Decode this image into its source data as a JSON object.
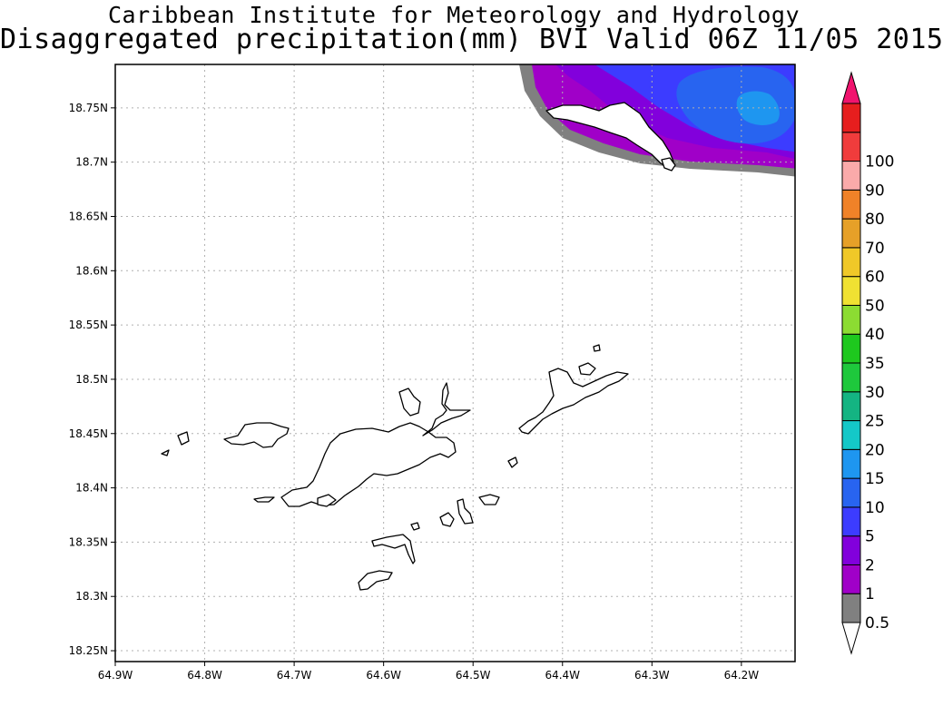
{
  "header": {
    "title": "Caribbean Institute for Meteorology and Hydrology",
    "subtitle": "Disaggregated precipitation(mm) BVI Valid 06Z 11/05 2015"
  },
  "map": {
    "lon_range": [
      -64.9,
      -64.14
    ],
    "lat_range": [
      18.24,
      18.79
    ],
    "lon_ticks": [
      {
        "value": -64.9,
        "label": "64.9W"
      },
      {
        "value": -64.8,
        "label": "64.8W"
      },
      {
        "value": -64.7,
        "label": "64.7W"
      },
      {
        "value": -64.6,
        "label": "64.6W"
      },
      {
        "value": -64.5,
        "label": "64.5W"
      },
      {
        "value": -64.4,
        "label": "64.4W"
      },
      {
        "value": -64.3,
        "label": "64.3W"
      },
      {
        "value": -64.2,
        "label": "64.2W"
      }
    ],
    "lat_ticks": [
      {
        "value": 18.25,
        "label": "18.25N"
      },
      {
        "value": 18.3,
        "label": "18.3N"
      },
      {
        "value": 18.35,
        "label": "18.35N"
      },
      {
        "value": 18.4,
        "label": "18.4N"
      },
      {
        "value": 18.45,
        "label": "18.45N"
      },
      {
        "value": 18.5,
        "label": "18.5N"
      },
      {
        "value": 18.55,
        "label": "18.55N"
      },
      {
        "value": 18.6,
        "label": "18.6N"
      },
      {
        "value": 18.65,
        "label": "18.65N"
      },
      {
        "value": 18.7,
        "label": "18.7N"
      },
      {
        "value": 18.75,
        "label": "18.75N"
      }
    ],
    "grid": true
  },
  "colorbar": {
    "levels": [
      {
        "label": "0.5",
        "color": "#808080"
      },
      {
        "label": "1",
        "color": "#a000c8"
      },
      {
        "label": "2",
        "color": "#8200dc"
      },
      {
        "label": "5",
        "color": "#3c3cff"
      },
      {
        "label": "10",
        "color": "#2864f0"
      },
      {
        "label": "15",
        "color": "#1e96f0"
      },
      {
        "label": "20",
        "color": "#14c8c8"
      },
      {
        "label": "25",
        "color": "#14b482"
      },
      {
        "label": "30",
        "color": "#1ec83c"
      },
      {
        "label": "35",
        "color": "#1ec81e"
      },
      {
        "label": "40",
        "color": "#8cdc32"
      },
      {
        "label": "50",
        "color": "#f0e132"
      },
      {
        "label": "60",
        "color": "#f0c828"
      },
      {
        "label": "70",
        "color": "#e6a028"
      },
      {
        "label": "80",
        "color": "#f08228"
      },
      {
        "label": "90",
        "color": "#faaaaa"
      },
      {
        "label": "100",
        "color": "#f03c3c"
      }
    ],
    "band_colors": [
      "#ffffff",
      "#808080",
      "#a000c8",
      "#8200dc",
      "#3c3cff",
      "#2864f0",
      "#1e96f0",
      "#14c8c8",
      "#14b482",
      "#1ec83c",
      "#1ec81e",
      "#8cdc32",
      "#f0e132",
      "#f0c828",
      "#e6a028",
      "#f08228",
      "#faaaaa",
      "#f03c3c",
      "#e61e1e",
      "#f0146e"
    ]
  }
}
